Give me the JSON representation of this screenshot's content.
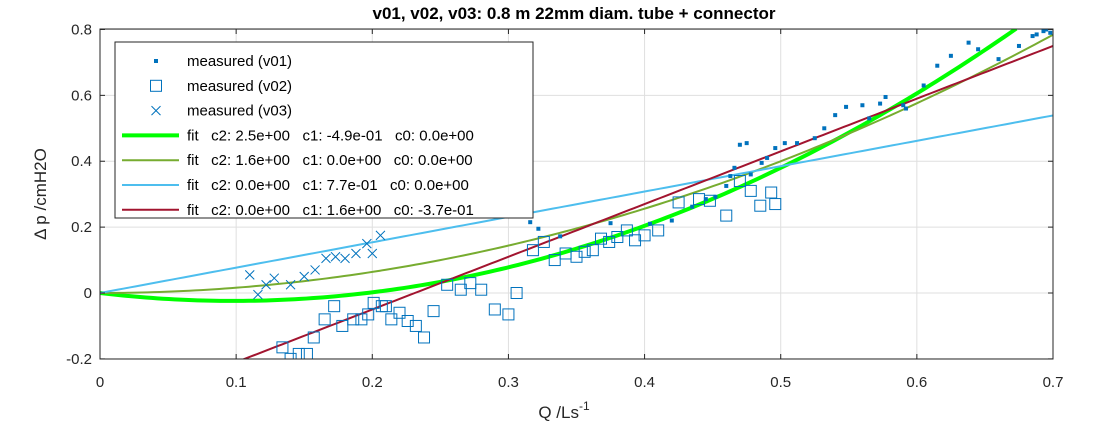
{
  "chart_data": {
    "type": "scatter",
    "title": "v01, v02, v03: 0.8 m 22mm diam. tube + connector",
    "xlabel": "Q /Ls",
    "xlabel_superscript": "-1",
    "ylabel": "Δ p /cmH2O",
    "xlim": [
      0,
      0.7
    ],
    "ylim": [
      -0.21,
      0.8
    ],
    "xticks": [
      0,
      0.1,
      0.2,
      0.3,
      0.4,
      0.5,
      0.6,
      0.7
    ],
    "xtick_labels": [
      "0",
      "0.1",
      "0.2",
      "0.3",
      "0.4",
      "0.5",
      "0.6",
      "0.7"
    ],
    "yticks": [
      -0.2,
      0,
      0.2,
      0.4,
      0.6,
      0.8
    ],
    "ytick_labels": [
      "-0.2",
      "0",
      "0.2",
      "0.4",
      "0.6",
      "0.8"
    ],
    "grid": true,
    "legend_position": "top-left",
    "series": [
      {
        "name": "measured (v01)",
        "kind": "scatter",
        "marker": "dot",
        "color": "#0072BD",
        "points": [
          [
            0.316,
            0.215
          ],
          [
            0.322,
            0.195
          ],
          [
            0.338,
            0.172
          ],
          [
            0.375,
            0.212
          ],
          [
            0.404,
            0.21
          ],
          [
            0.42,
            0.22
          ],
          [
            0.435,
            0.262
          ],
          [
            0.445,
            0.285
          ],
          [
            0.452,
            0.292
          ],
          [
            0.46,
            0.325
          ],
          [
            0.463,
            0.355
          ],
          [
            0.466,
            0.38
          ],
          [
            0.47,
            0.45
          ],
          [
            0.475,
            0.455
          ],
          [
            0.478,
            0.36
          ],
          [
            0.486,
            0.395
          ],
          [
            0.49,
            0.41
          ],
          [
            0.496,
            0.44
          ],
          [
            0.503,
            0.455
          ],
          [
            0.512,
            0.455
          ],
          [
            0.525,
            0.47
          ],
          [
            0.532,
            0.5
          ],
          [
            0.54,
            0.54
          ],
          [
            0.548,
            0.565
          ],
          [
            0.56,
            0.57
          ],
          [
            0.565,
            0.53
          ],
          [
            0.573,
            0.575
          ],
          [
            0.577,
            0.595
          ],
          [
            0.59,
            0.57
          ],
          [
            0.592,
            0.56
          ],
          [
            0.605,
            0.63
          ],
          [
            0.615,
            0.69
          ],
          [
            0.625,
            0.72
          ],
          [
            0.638,
            0.76
          ],
          [
            0.645,
            0.74
          ],
          [
            0.66,
            0.71
          ],
          [
            0.675,
            0.75
          ],
          [
            0.685,
            0.78
          ],
          [
            0.688,
            0.785
          ],
          [
            0.693,
            0.795
          ],
          [
            0.695,
            0.8
          ],
          [
            0.698,
            0.79
          ]
        ]
      },
      {
        "name": "measured (v02)",
        "kind": "scatter",
        "marker": "square",
        "color": "#0072BD",
        "points": [
          [
            0.134,
            -0.165
          ],
          [
            0.14,
            -0.2
          ],
          [
            0.146,
            -0.185
          ],
          [
            0.152,
            -0.185
          ],
          [
            0.157,
            -0.135
          ],
          [
            0.165,
            -0.08
          ],
          [
            0.172,
            -0.04
          ],
          [
            0.178,
            -0.1
          ],
          [
            0.186,
            -0.08
          ],
          [
            0.192,
            -0.08
          ],
          [
            0.197,
            -0.065
          ],
          [
            0.201,
            -0.03
          ],
          [
            0.207,
            -0.04
          ],
          [
            0.21,
            -0.04
          ],
          [
            0.214,
            -0.08
          ],
          [
            0.22,
            -0.06
          ],
          [
            0.226,
            -0.085
          ],
          [
            0.232,
            -0.1
          ],
          [
            0.238,
            -0.135
          ],
          [
            0.245,
            -0.055
          ],
          [
            0.255,
            0.025
          ],
          [
            0.265,
            0.01
          ],
          [
            0.272,
            0.03
          ],
          [
            0.28,
            0.01
          ],
          [
            0.29,
            -0.05
          ],
          [
            0.3,
            -0.065
          ],
          [
            0.306,
            0.0
          ],
          [
            0.318,
            0.13
          ],
          [
            0.326,
            0.155
          ],
          [
            0.334,
            0.1
          ],
          [
            0.342,
            0.12
          ],
          [
            0.35,
            0.11
          ],
          [
            0.356,
            0.125
          ],
          [
            0.362,
            0.13
          ],
          [
            0.368,
            0.165
          ],
          [
            0.374,
            0.155
          ],
          [
            0.38,
            0.17
          ],
          [
            0.387,
            0.19
          ],
          [
            0.393,
            0.16
          ],
          [
            0.4,
            0.175
          ],
          [
            0.41,
            0.19
          ],
          [
            0.425,
            0.275
          ],
          [
            0.44,
            0.285
          ],
          [
            0.448,
            0.28
          ],
          [
            0.46,
            0.235
          ],
          [
            0.47,
            0.34
          ],
          [
            0.478,
            0.31
          ],
          [
            0.485,
            0.265
          ],
          [
            0.493,
            0.305
          ],
          [
            0.496,
            0.27
          ]
        ]
      },
      {
        "name": "measured (v03)",
        "kind": "scatter",
        "marker": "x",
        "color": "#0072BD",
        "points": [
          [
            0.11,
            0.055
          ],
          [
            0.116,
            -0.005
          ],
          [
            0.122,
            0.025
          ],
          [
            0.128,
            0.045
          ],
          [
            0.14,
            0.025
          ],
          [
            0.15,
            0.05
          ],
          [
            0.158,
            0.07
          ],
          [
            0.166,
            0.105
          ],
          [
            0.173,
            0.11
          ],
          [
            0.18,
            0.105
          ],
          [
            0.188,
            0.12
          ],
          [
            0.196,
            0.15
          ],
          [
            0.2,
            0.12
          ],
          [
            0.206,
            0.175
          ]
        ]
      },
      {
        "name": "fit   c2: 2.5e+00   c1: -4.9e-01   c0: 0.0e+00",
        "kind": "poly",
        "coeffs": {
          "c2": 2.5,
          "c1": -0.49,
          "c0": 0.0
        },
        "x_range": [
          0,
          0.673
        ],
        "color": "#00FF00",
        "width": 4
      },
      {
        "name": "fit   c2: 1.6e+00   c1: 0.0e+00   c0: 0.0e+00",
        "kind": "poly",
        "coeffs": {
          "c2": 1.6,
          "c1": 0.0,
          "c0": 0.0
        },
        "x_range": [
          0,
          0.7
        ],
        "color": "#77AC30",
        "width": 2
      },
      {
        "name": "fit   c2: 0.0e+00   c1: 7.7e-01   c0: 0.0e+00",
        "kind": "poly",
        "coeffs": {
          "c2": 0.0,
          "c1": 0.77,
          "c0": 0.0
        },
        "x_range": [
          0,
          0.7
        ],
        "color": "#4DBEEE",
        "width": 2
      },
      {
        "name": "fit   c2: 0.0e+00   c1: 1.6e+00   c0: -3.7e-01",
        "kind": "poly",
        "coeffs": {
          "c2": 0.0,
          "c1": 1.6,
          "c0": -0.37
        },
        "x_range": [
          0.1,
          0.7
        ],
        "color": "#A2142F",
        "width": 2
      }
    ]
  }
}
